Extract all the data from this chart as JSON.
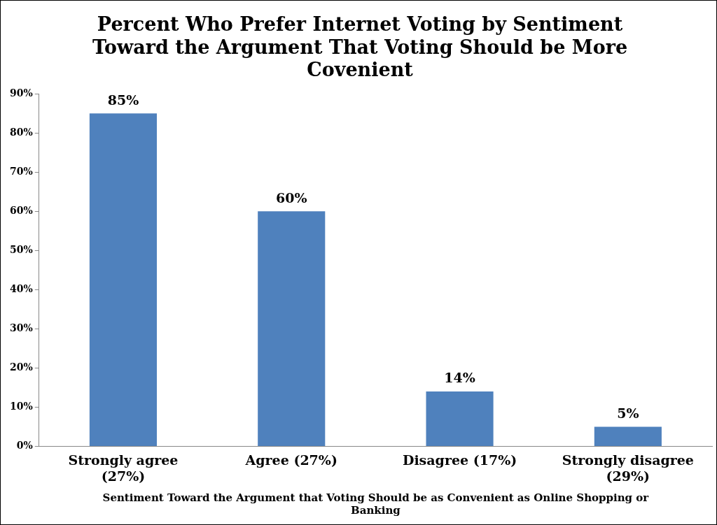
{
  "chart_data": {
    "type": "bar",
    "title": "Percent Who Prefer Internet Voting by Sentiment Toward the Argument That Voting Should be More Covenient",
    "xlabel": "Sentiment Toward the Argument that Voting Should be as Convenient as Online Shopping or Banking",
    "categories": [
      "Strongly agree (27%)",
      "Agree (27%)",
      "Disagree (17%)",
      "Strongly disagree (29%)"
    ],
    "values": [
      85,
      60,
      14,
      5
    ],
    "value_labels": [
      "85%",
      "60%",
      "14%",
      "5%"
    ],
    "color": "#4f81bd",
    "ylim": [
      0,
      90
    ],
    "yticks": [
      {
        "value": 0,
        "label": "0%"
      },
      {
        "value": 10,
        "label": "10%"
      },
      {
        "value": 20,
        "label": "20%"
      },
      {
        "value": 30,
        "label": "30%"
      },
      {
        "value": 40,
        "label": "40%"
      },
      {
        "value": 50,
        "label": "50%"
      },
      {
        "value": 60,
        "label": "60%"
      },
      {
        "value": 70,
        "label": "70%"
      },
      {
        "value": 80,
        "label": "80%"
      },
      {
        "value": 90,
        "label": "90%"
      }
    ],
    "grid": false,
    "legend": false
  }
}
